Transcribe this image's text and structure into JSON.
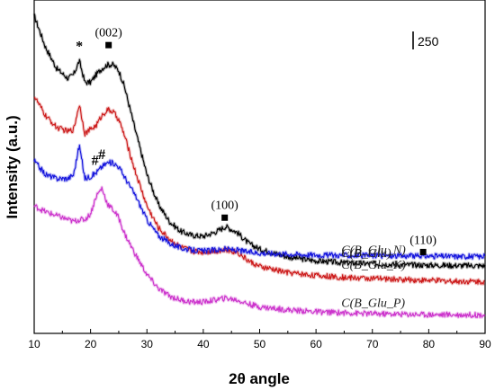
{
  "chart_data": {
    "type": "line",
    "xlabel": "2θ angle",
    "ylabel": "Intensity (a.u.)",
    "xlim": [
      10,
      90
    ],
    "xticks": [
      10,
      20,
      30,
      40,
      50,
      60,
      70,
      80,
      90
    ],
    "y_offset_per_series": true,
    "scale_bar": "250",
    "colors": {
      "C(B_Glu)": "#000000",
      "C(B_Glu_K)": "#cc1a1a",
      "C(B_Glu_N)": "#1515dd",
      "C(B_Glu_P)": "#cc33cc"
    },
    "series": [
      {
        "name": "C(B_Glu)",
        "color": "#000000",
        "x": [
          10,
          12,
          14,
          16,
          17,
          18,
          19,
          20,
          21,
          22,
          23,
          24,
          25,
          26,
          28,
          30,
          32,
          34,
          36,
          38,
          40,
          42,
          44,
          46,
          48,
          50,
          55,
          60,
          65,
          70,
          75,
          80,
          85,
          90
        ],
        "y": [
          2040,
          1880,
          1770,
          1720,
          1740,
          1810,
          1700,
          1700,
          1740,
          1770,
          1790,
          1790,
          1760,
          1680,
          1450,
          1230,
          1080,
          990,
          940,
          920,
          915,
          935,
          965,
          935,
          880,
          850,
          810,
          790,
          780,
          775,
          770,
          768,
          766,
          765
        ]
      },
      {
        "name": "C(B_Glu_K)",
        "color": "#cc1a1a",
        "x": [
          10,
          12,
          14,
          16,
          17,
          18,
          19,
          20,
          21,
          22,
          23,
          24,
          25,
          26,
          28,
          30,
          32,
          34,
          36,
          38,
          40,
          42,
          44,
          46,
          48,
          50,
          55,
          60,
          65,
          70,
          75,
          80,
          85,
          90
        ],
        "y": [
          1630,
          1530,
          1470,
          1450,
          1460,
          1590,
          1440,
          1460,
          1480,
          1530,
          1560,
          1550,
          1510,
          1430,
          1240,
          1070,
          960,
          900,
          860,
          840,
          835,
          840,
          845,
          835,
          790,
          760,
          730,
          715,
          705,
          700,
          695,
          690,
          686,
          684
        ]
      },
      {
        "name": "C(B_Glu_N)",
        "color": "#1515dd",
        "x": [
          10,
          12,
          14,
          16,
          17,
          18,
          19,
          20,
          21,
          22,
          23,
          24,
          25,
          26,
          28,
          30,
          32,
          34,
          36,
          38,
          40,
          42,
          44,
          46,
          48,
          50,
          55,
          60,
          65,
          70,
          75,
          80,
          85,
          90
        ],
        "y": [
          1300,
          1230,
          1210,
          1210,
          1230,
          1380,
          1210,
          1220,
          1240,
          1270,
          1290,
          1290,
          1270,
          1220,
          1120,
          1000,
          920,
          880,
          855,
          845,
          840,
          845,
          850,
          845,
          835,
          830,
          825,
          820,
          818,
          816,
          815,
          814,
          813,
          812
        ]
      },
      {
        "name": "C(B_Glu_P)",
        "color": "#cc33cc",
        "x": [
          10,
          12,
          14,
          16,
          17,
          18,
          19,
          20,
          21,
          22,
          23,
          24,
          25,
          26,
          28,
          30,
          32,
          34,
          36,
          38,
          40,
          42,
          44,
          46,
          48,
          50,
          55,
          60,
          65,
          70,
          75,
          80,
          85,
          90
        ],
        "y": [
          1070,
          1040,
          1020,
          1000,
          990,
          1000,
          1000,
          1030,
          1120,
          1160,
          1080,
          1050,
          1010,
          930,
          820,
          720,
          650,
          610,
          590,
          580,
          580,
          590,
          600,
          590,
          570,
          555,
          540,
          530,
          525,
          520,
          518,
          516,
          515,
          514
        ]
      }
    ],
    "series_labels": [
      {
        "text": "C(B_Glu)",
        "x": 64.5,
        "y": 810
      },
      {
        "text": "C(B_Glu_K)",
        "x": 64.5,
        "y": 750
      },
      {
        "text": "C(B_Glu_N)",
        "x": 64.5,
        "y": 825
      },
      {
        "text": "C(B_Glu_P)",
        "x": 64.5,
        "y": 555
      }
    ],
    "annotations": [
      {
        "text": "(002)",
        "x": 23.2,
        "y": 1935,
        "marker": "square",
        "marker_y": 1890
      },
      {
        "text": "(100)",
        "x": 43.8,
        "y": 1055,
        "marker": "square",
        "marker_y": 1010
      },
      {
        "text": "(110)",
        "x": 79.0,
        "y": 875,
        "marker": "square",
        "marker_y": 835
      },
      {
        "text": "*",
        "x": 18.0,
        "y": 1860
      },
      {
        "text": "#",
        "x": 20.8,
        "y": 1280
      },
      {
        "text": "#",
        "x": 22.0,
        "y": 1310
      }
    ]
  }
}
